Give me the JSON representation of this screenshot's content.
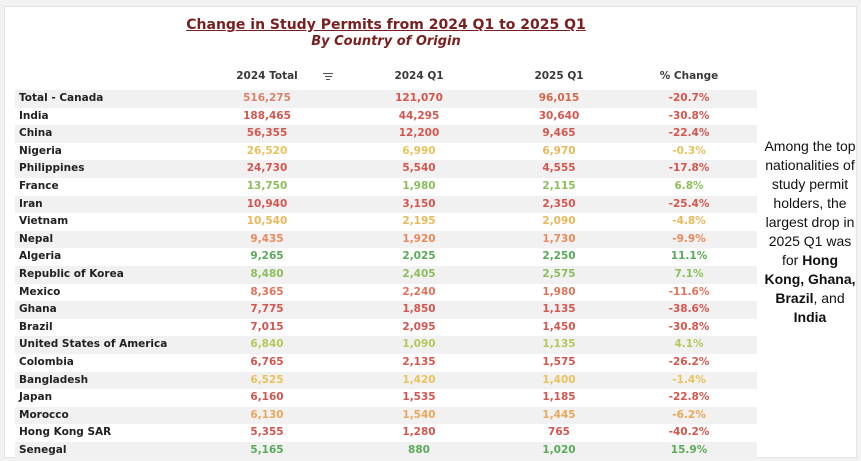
{
  "chart_data": {
    "type": "table",
    "title": "Change in Study Permits from 2024 Q1 to 2025 Q1",
    "subtitle": "By Country of Origin",
    "columns": [
      "2024 Total",
      "2024 Q1",
      "2025 Q1",
      "% Change"
    ],
    "rows": [
      {
        "country": "Total - Canada",
        "total2024": "516,275",
        "q1_2024": "121,070",
        "q1_2025": "96,015",
        "pct_change": "-20.7%",
        "colors": [
          "#d9826b",
          "#d4564e",
          "#d4674e",
          "#d4564e"
        ]
      },
      {
        "country": "India",
        "total2024": "188,465",
        "q1_2024": "44,295",
        "q1_2025": "30,640",
        "pct_change": "-30.8%",
        "colors": [
          "#d4564e",
          "#d4564e",
          "#d4564e",
          "#d4564e"
        ]
      },
      {
        "country": "China",
        "total2024": "56,355",
        "q1_2024": "12,200",
        "q1_2025": "9,465",
        "pct_change": "-22.4%",
        "colors": [
          "#d4564e",
          "#d4564e",
          "#d4564e",
          "#d4564e"
        ]
      },
      {
        "country": "Nigeria",
        "total2024": "26,520",
        "q1_2024": "6,990",
        "q1_2025": "6,970",
        "pct_change": "-0.3%",
        "colors": [
          "#e8c25a",
          "#e8c25a",
          "#e8b85a",
          "#e8c25a"
        ]
      },
      {
        "country": "Philippines",
        "total2024": "24,730",
        "q1_2024": "5,540",
        "q1_2025": "4,555",
        "pct_change": "-17.8%",
        "colors": [
          "#d4564e",
          "#d4564e",
          "#d4564e",
          "#d4564e"
        ]
      },
      {
        "country": "France",
        "total2024": "13,750",
        "q1_2024": "1,980",
        "q1_2025": "2,115",
        "pct_change": "6.8%",
        "colors": [
          "#8cbf5c",
          "#8cbf5c",
          "#8cbf5c",
          "#8cbf5c"
        ]
      },
      {
        "country": "Iran",
        "total2024": "10,940",
        "q1_2024": "3,150",
        "q1_2025": "2,350",
        "pct_change": "-25.4%",
        "colors": [
          "#d4564e",
          "#d4564e",
          "#d4564e",
          "#d4564e"
        ]
      },
      {
        "country": "Vietnam",
        "total2024": "10,540",
        "q1_2024": "2,195",
        "q1_2025": "2,090",
        "pct_change": "-4.8%",
        "colors": [
          "#e8b85a",
          "#e8b85a",
          "#e8b85a",
          "#e8b85a"
        ]
      },
      {
        "country": "Nepal",
        "total2024": "9,435",
        "q1_2024": "1,920",
        "q1_2025": "1,730",
        "pct_change": "-9.9%",
        "colors": [
          "#e88a5a",
          "#e88a5a",
          "#e88a5a",
          "#e88a5a"
        ]
      },
      {
        "country": "Algeria",
        "total2024": "9,265",
        "q1_2024": "2,025",
        "q1_2025": "2,250",
        "pct_change": "11.1%",
        "colors": [
          "#5aaa5a",
          "#5aaa5a",
          "#5aaa5a",
          "#5aaa5a"
        ]
      },
      {
        "country": "Republic of Korea",
        "total2024": "8,480",
        "q1_2024": "2,405",
        "q1_2025": "2,575",
        "pct_change": "7.1%",
        "colors": [
          "#8cbf5c",
          "#8cbf5c",
          "#8cbf5c",
          "#8cbf5c"
        ]
      },
      {
        "country": "Mexico",
        "total2024": "8,365",
        "q1_2024": "2,240",
        "q1_2025": "1,980",
        "pct_change": "-11.6%",
        "colors": [
          "#e0745a",
          "#e0745a",
          "#e0745a",
          "#e0745a"
        ]
      },
      {
        "country": "Ghana",
        "total2024": "7,775",
        "q1_2024": "1,850",
        "q1_2025": "1,135",
        "pct_change": "-38.6%",
        "colors": [
          "#d4564e",
          "#d4564e",
          "#d4564e",
          "#d4564e"
        ]
      },
      {
        "country": "Brazil",
        "total2024": "7,015",
        "q1_2024": "2,095",
        "q1_2025": "1,450",
        "pct_change": "-30.8%",
        "colors": [
          "#d4564e",
          "#d4564e",
          "#d4564e",
          "#d4564e"
        ]
      },
      {
        "country": "United States of America",
        "total2024": "6,840",
        "q1_2024": "1,090",
        "q1_2025": "1,135",
        "pct_change": "4.1%",
        "colors": [
          "#b4c85a",
          "#b4c85a",
          "#b4c85a",
          "#b4c85a"
        ]
      },
      {
        "country": "Colombia",
        "total2024": "6,765",
        "q1_2024": "2,135",
        "q1_2025": "1,575",
        "pct_change": "-26.2%",
        "colors": [
          "#d4564e",
          "#d4564e",
          "#d4564e",
          "#d4564e"
        ]
      },
      {
        "country": "Bangladesh",
        "total2024": "6,525",
        "q1_2024": "1,420",
        "q1_2025": "1,400",
        "pct_change": "-1.4%",
        "colors": [
          "#e8c25a",
          "#e8c25a",
          "#e8c25a",
          "#e8c25a"
        ]
      },
      {
        "country": "Japan",
        "total2024": "6,160",
        "q1_2024": "1,535",
        "q1_2025": "1,185",
        "pct_change": "-22.8%",
        "colors": [
          "#d4564e",
          "#d4564e",
          "#d4564e",
          "#d4564e"
        ]
      },
      {
        "country": "Morocco",
        "total2024": "6,130",
        "q1_2024": "1,540",
        "q1_2025": "1,445",
        "pct_change": "-6.2%",
        "colors": [
          "#e8a85a",
          "#e8a85a",
          "#e8a85a",
          "#e8a85a"
        ]
      },
      {
        "country": "Hong Kong SAR",
        "total2024": "5,355",
        "q1_2024": "1,280",
        "q1_2025": "765",
        "pct_change": "-40.2%",
        "colors": [
          "#d4564e",
          "#d4564e",
          "#d4564e",
          "#d4564e"
        ]
      },
      {
        "country": "Senegal",
        "total2024": "5,165",
        "q1_2024": "880",
        "q1_2025": "1,020",
        "pct_change": "15.9%",
        "colors": [
          "#5aaa5a",
          "#5aaa5a",
          "#5aaa5a",
          "#5aaa5a"
        ]
      }
    ]
  },
  "note": {
    "intro": "Among the top nationalities of study permit holders, the largest drop in 2025 Q1 was for",
    "highlight1": "Hong Kong, Ghana, Brazil",
    "connector": ", and",
    "highlight2": "India"
  },
  "icons": {
    "filter": "filter-lines-icon"
  }
}
